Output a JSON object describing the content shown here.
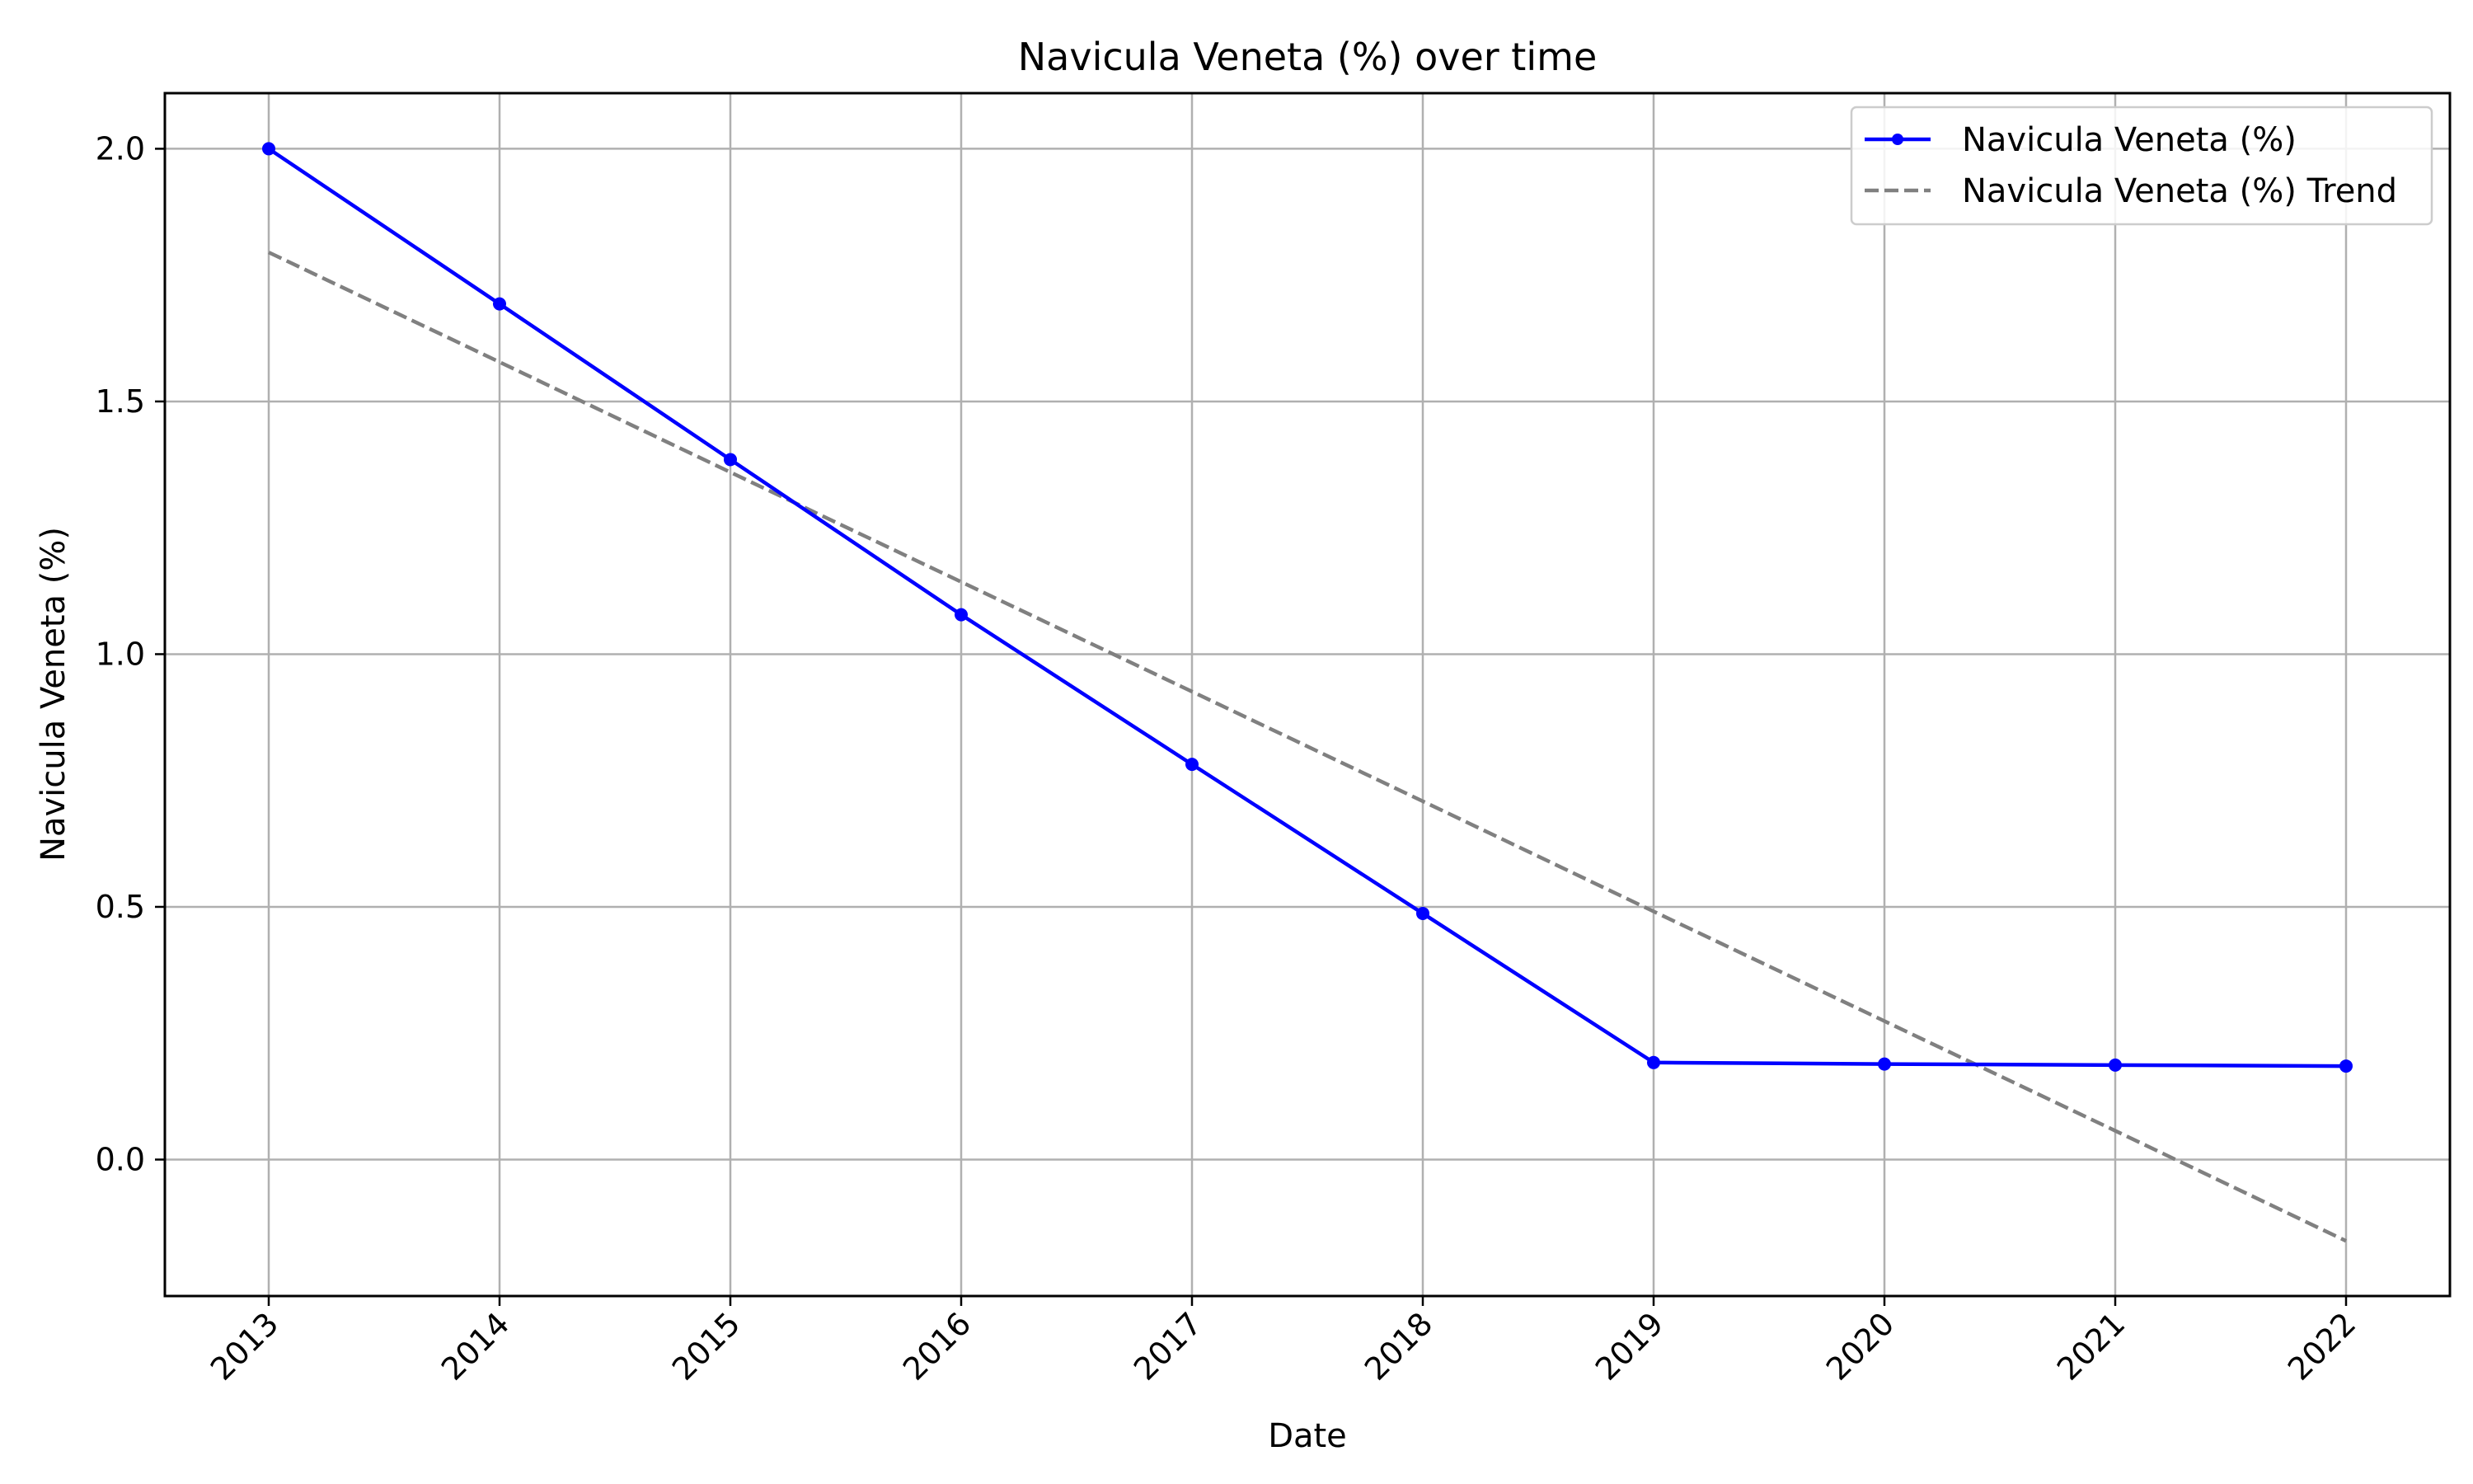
{
  "chart_data": {
    "type": "line",
    "title": "Navicula Veneta (%) over time",
    "xlabel": "Date",
    "ylabel": "Navicula Veneta (%)",
    "x": [
      "2013",
      "2014",
      "2015",
      "2016",
      "2017",
      "2018",
      "2019",
      "2020",
      "2021",
      "2022"
    ],
    "xlim": [
      2012.55,
      2022.45
    ],
    "ylim": [
      -0.27,
      2.11
    ],
    "yticks": [
      0.0,
      0.5,
      1.0,
      1.5,
      2.0
    ],
    "ytick_labels": [
      "0.0",
      "0.5",
      "1.0",
      "1.5",
      "2.0"
    ],
    "grid": true,
    "legend_position": "top-right",
    "series": [
      {
        "name": "Navicula Veneta (%)",
        "style": "solid-marker",
        "color": "#0000ff",
        "values": [
          2.0,
          1.693,
          1.385,
          1.078,
          0.782,
          0.487,
          0.192,
          0.189,
          0.187,
          0.185
        ]
      },
      {
        "name": "Navicula Veneta (%) Trend",
        "style": "dashed",
        "color": "#808080",
        "values": [
          1.795,
          1.578,
          1.36,
          1.143,
          0.926,
          0.709,
          0.491,
          0.274,
          0.057,
          -0.161
        ]
      }
    ]
  }
}
